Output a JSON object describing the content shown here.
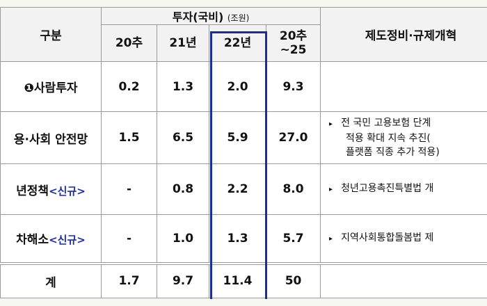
{
  "header": {
    "left": "구분",
    "group": "투자(국비)",
    "group_unit": "(조원)",
    "columns": [
      "20추",
      "21년",
      "22년",
      "20추\n~25"
    ],
    "right": "제도정비·규제개혁"
  },
  "rows": [
    {
      "label": "❶사람투자",
      "tag": null,
      "values": [
        "0.2",
        "1.3",
        "2.0",
        "9.3"
      ],
      "notes": []
    },
    {
      "label": "용·사회 안전망",
      "tag": null,
      "values": [
        "1.5",
        "6.5",
        "5.9",
        "27.0"
      ],
      "notes": [
        "전 국민 고용보험 단계",
        "적용 확대 지속 추진(",
        "플랫폼 직종 추가 적용)"
      ]
    },
    {
      "label": "년정책",
      "tag": "<신규>",
      "values": [
        "-",
        "0.8",
        "2.2",
        "8.0"
      ],
      "notes": [
        "청년고용촉진특별법 개"
      ]
    },
    {
      "label": "차해소",
      "tag": "<신규>",
      "values": [
        "-",
        "1.0",
        "1.3",
        "5.7"
      ],
      "notes": [
        "지역사회통합돌봄법 제"
      ]
    }
  ],
  "total": {
    "label": "계",
    "values": [
      "1.7",
      "9.7",
      "11.4",
      "50"
    ]
  }
}
